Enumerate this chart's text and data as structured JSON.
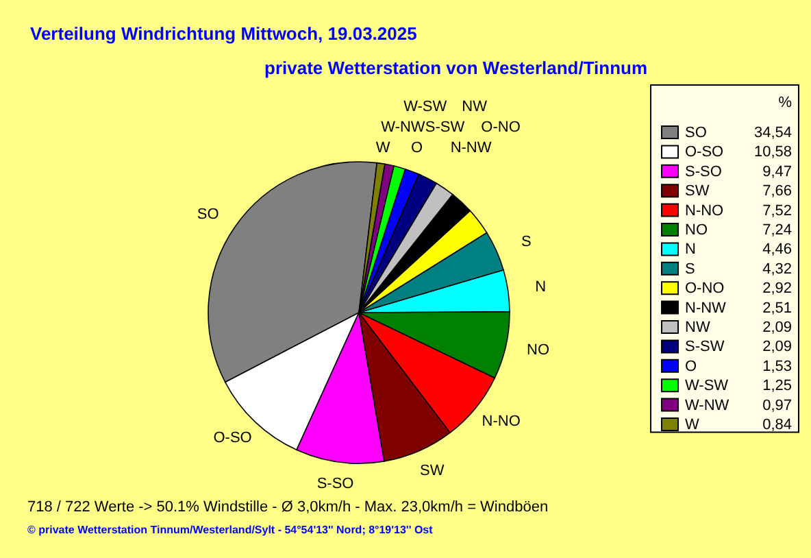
{
  "chart_data": {
    "type": "pie",
    "title": "Verteilung Windrichtung   Mittwoch, 19.03.2025",
    "subtitle": "private Wetterstation von Westerland/Tinnum",
    "legend_title": "%",
    "categories": [
      "SO",
      "O-SO",
      "S-SO",
      "SW",
      "N-NO",
      "NO",
      "N",
      "S",
      "O-NO",
      "N-NW",
      "NW",
      "S-SW",
      "O",
      "W-SW",
      "W-NW",
      "W"
    ],
    "values": [
      34.54,
      10.58,
      9.47,
      7.66,
      7.52,
      7.24,
      4.46,
      4.32,
      2.92,
      2.51,
      2.09,
      2.09,
      1.53,
      1.25,
      0.97,
      0.84
    ],
    "value_labels": [
      "34,54",
      "10,58",
      "9,47",
      "7,66",
      "7,52",
      "7,24",
      "4,46",
      "4,32",
      "2,92",
      "2,51",
      "2,09",
      "2,09",
      "1,53",
      "1,25",
      "0,97",
      "0,84"
    ],
    "colors": [
      "#808080",
      "#ffffff",
      "#ff00ff",
      "#800000",
      "#ff0000",
      "#008000",
      "#00ffff",
      "#008080",
      "#ffff00",
      "#000000",
      "#c0c0c0",
      "#000080",
      "#0000ff",
      "#00ff00",
      "#800080",
      "#808000"
    ],
    "legend": "right",
    "annotations": [
      "718 / 722 Werte  -> 50.1% Windstille   -   Ø 3,0km/h  -  Max. 23,0km/h = Windböen",
      "© private Wetterstation Tinnum/Westerland/Sylt   -   54°54'13'' Nord; 8°19'13'' Ost"
    ]
  }
}
